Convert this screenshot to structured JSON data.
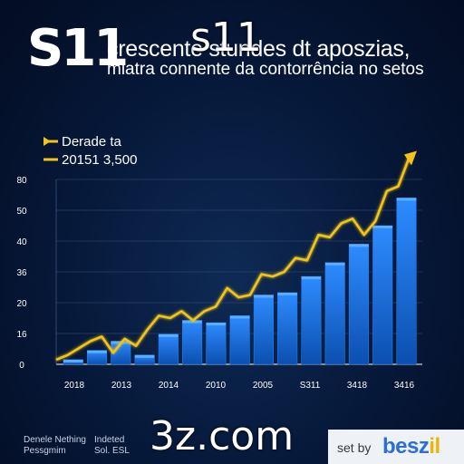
{
  "header": {
    "logo_text": "S11",
    "title_line_1": "crescente stundes dt aposzias,",
    "title_line_2": "miatra connente da contorrência no setos"
  },
  "overlay": {
    "top_text": "s11",
    "bottom_text": "3z.com"
  },
  "footer": {
    "left_line_1": "Denele Nething",
    "left_line_2": "Pessgmim",
    "mid_line_1": "Indeted",
    "mid_line_2": "Sol. ESL",
    "brand_prefix": "set by",
    "brand_name_main": "besz",
    "brand_name_accent": "il"
  },
  "colors": {
    "bar": "#1f7ef0",
    "bar_dark": "#0b4fb0",
    "line": "#f2c418",
    "grid": "#3d5680",
    "axis_text": "#ffffff"
  },
  "chart_data": {
    "type": "bar",
    "legend": {
      "placement": "top-left",
      "entries": [
        "Derade ta",
        "20151 3,500"
      ]
    },
    "y_tick_labels": [
      "0",
      "16",
      "20",
      "36",
      "40",
      "50",
      "80"
    ],
    "x_tick_labels": [
      "2018",
      "2013",
      "2014",
      "2010",
      "2005",
      "S311",
      "3418",
      "3416"
    ],
    "ylim": [
      0,
      80
    ],
    "grid": true,
    "series": [
      {
        "kind": "bar",
        "values": [
          2,
          6,
          10,
          4,
          13,
          19,
          18,
          21,
          30,
          31,
          38,
          44,
          52,
          60,
          72
        ]
      },
      {
        "kind": "line",
        "values": [
          2,
          4,
          7,
          10,
          12,
          5,
          11,
          8,
          15,
          21,
          20,
          23,
          19,
          23,
          25,
          33,
          29,
          30,
          39,
          38,
          40,
          46,
          45,
          56,
          55,
          61,
          63,
          56,
          62,
          75,
          77,
          90
        ]
      }
    ]
  }
}
